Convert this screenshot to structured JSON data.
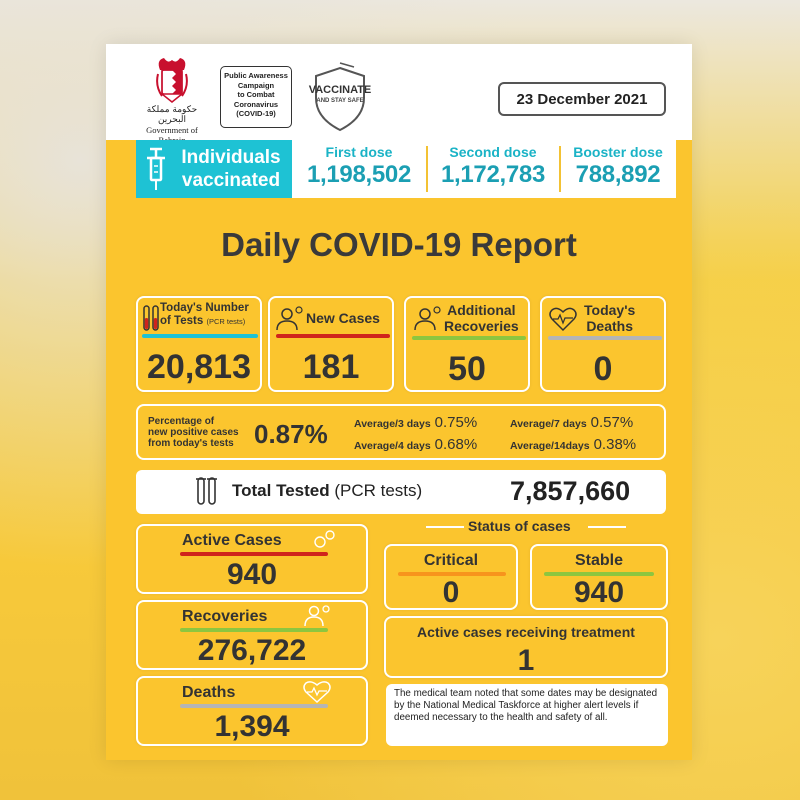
{
  "header": {
    "gov_arabic": "حكومة مملكة البحرين",
    "gov_english": "Government of Bahrain",
    "campaign_lines": [
      "Public Awareness",
      "Campaign",
      "to Combat",
      "Coronavirus",
      "(COVID-19)"
    ],
    "vaccinate_title": "VACCINATE",
    "vaccinate_sub": "AND STAY SAFE",
    "date": "23 December 2021"
  },
  "vaccination": {
    "label_line1": "Individuals",
    "label_line2": "vaccinated",
    "doses": [
      {
        "label": "First dose",
        "value": "1,198,502"
      },
      {
        "label": "Second dose",
        "value": "1,172,783"
      },
      {
        "label": "Booster dose",
        "value": "788,892"
      }
    ]
  },
  "title": "Daily COVID-19 Report",
  "kpis": {
    "tests": {
      "label_line1": "Today's Number",
      "label_line2": "of Tests",
      "label_small": "(PCR tests)",
      "value": "20,813"
    },
    "new_cases": {
      "label": "New Cases",
      "value": "181"
    },
    "recoveries": {
      "label_line1": "Additional",
      "label_line2": "Recoveries",
      "value": "50"
    },
    "deaths": {
      "label_line1": "Today's",
      "label_line2": "Deaths",
      "value": "0"
    }
  },
  "percentage": {
    "label_line1": "Percentage of",
    "label_line2": "new positive cases",
    "label_line3": "from today's tests",
    "value": "0.87%",
    "averages": [
      {
        "label": "Average/3 days",
        "value": "0.75%"
      },
      {
        "label": "Average/7 days",
        "value": "0.57%"
      },
      {
        "label": "Average/4 days",
        "value": "0.68%"
      },
      {
        "label": "Average/14days",
        "value": "0.38%"
      }
    ]
  },
  "total": {
    "label_bold": "Total Tested",
    "label_rest": " (PCR tests)",
    "value": "7,857,660"
  },
  "cumulative": {
    "active": {
      "label": "Active Cases",
      "value": "940"
    },
    "recoveries": {
      "label": "Recoveries",
      "value": "276,722"
    },
    "deaths": {
      "label": "Deaths",
      "value": "1,394"
    }
  },
  "status": {
    "title": "Status of cases",
    "critical": {
      "label": "Critical",
      "value": "0"
    },
    "stable": {
      "label": "Stable",
      "value": "940"
    },
    "treatment": {
      "label": "Active cases receiving treatment",
      "value": "1"
    }
  },
  "note": "The medical team noted that some dates may be designated by the National Medical Taskforce at higher alert levels if deemed necessary to the health and safety of all.",
  "colors": {
    "card_yellow": "#fbc52e",
    "teal": "#1ec2d4",
    "red": "#d0241c",
    "green": "#8dc63f",
    "orange": "#f7941d",
    "gray": "#b5b5b5"
  }
}
